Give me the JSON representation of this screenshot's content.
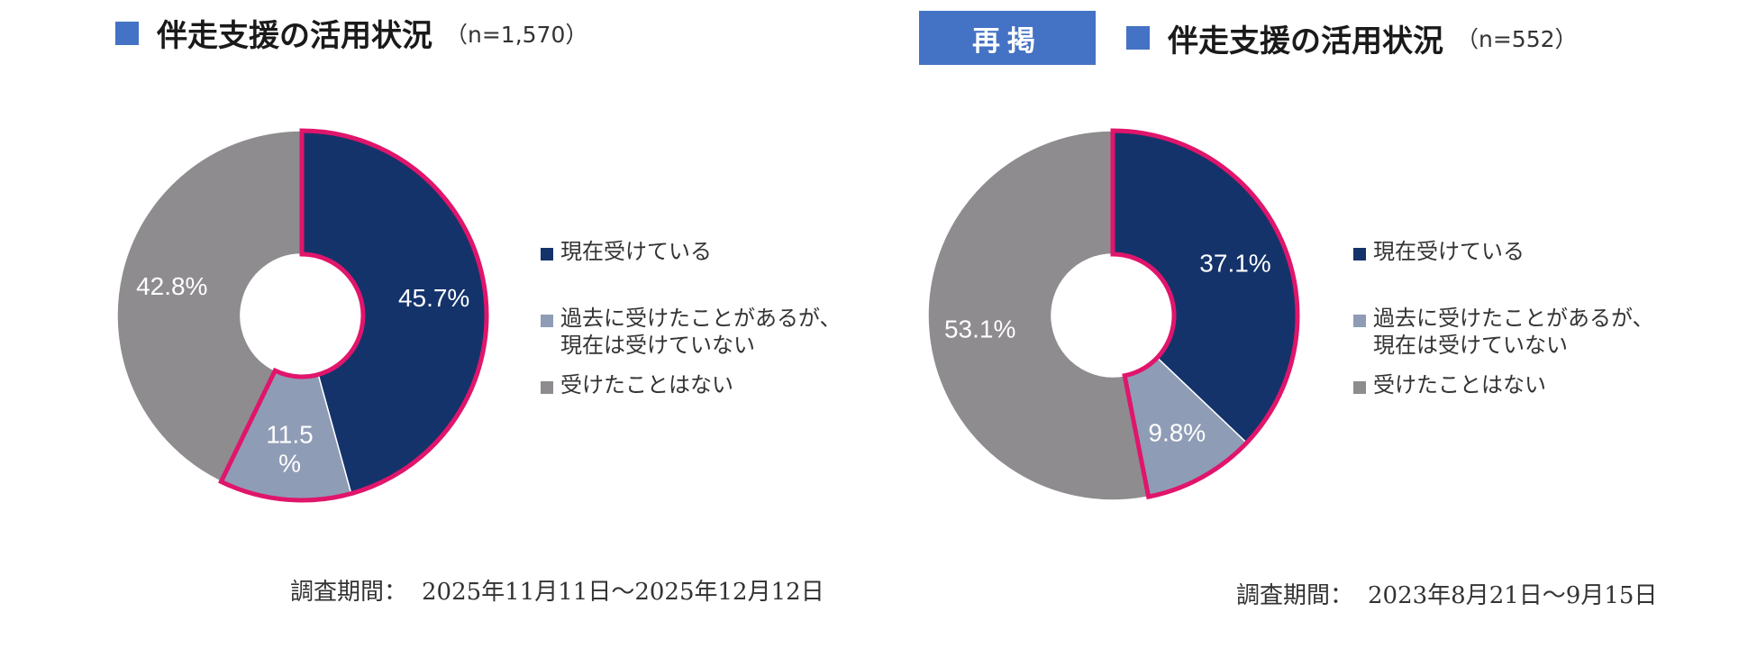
{
  "colors": {
    "accent_blue": "#4472C4",
    "current": "#14336B",
    "past": "#8F9CB6",
    "never": "#8E8C8F",
    "highlight": "#E0156B"
  },
  "legend": [
    {
      "label": "現在受けている",
      "color": "#14336B"
    },
    {
      "label": "過去に受けたことがあるが、\n現在は受けていない",
      "color": "#8F9CB6"
    },
    {
      "label": "受けたことはない",
      "color": "#8E8C8F"
    }
  ],
  "left": {
    "title": "伴走支援の活用状況",
    "n_label": "（n=1,570）",
    "period_label": "調査期間：",
    "period_value": "2025年11月11日～2025年12月12日"
  },
  "right": {
    "badge": "再掲",
    "title": "伴走支援の活用状況",
    "n_label": "（n=552）",
    "period_label": "調査期間：",
    "period_value": "2023年8月21日～9月15日"
  },
  "chart_data": [
    {
      "type": "pie",
      "title": "伴走支援の活用状況",
      "n": "1,570",
      "categories": [
        "現在受けている",
        "過去に受けたことがあるが、現在は受けていない",
        "受けたことはない"
      ],
      "values": [
        45.7,
        11.5,
        42.8
      ],
      "data_labels": [
        "45.7%",
        "11.5\n%",
        "42.8%"
      ],
      "highlighted": [
        true,
        true,
        false
      ],
      "legend_position": "right"
    },
    {
      "type": "pie",
      "title": "伴走支援の活用状況",
      "n": "552",
      "categories": [
        "現在受けている",
        "過去に受けたことがあるが、現在は受けていない",
        "受けたことはない"
      ],
      "values": [
        37.1,
        9.8,
        53.1
      ],
      "data_labels": [
        "37.1%",
        "9.8%",
        "53.1%"
      ],
      "highlighted": [
        true,
        true,
        false
      ],
      "legend_position": "right"
    }
  ]
}
